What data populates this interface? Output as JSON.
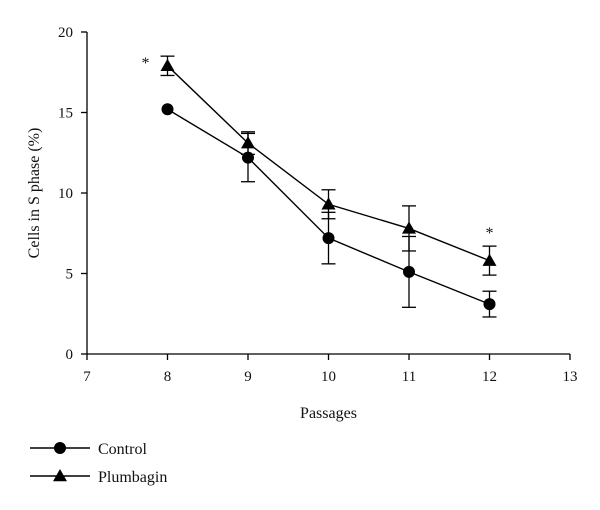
{
  "chart_data": {
    "type": "line",
    "xlabel": "Passages",
    "ylabel": "Cells in S phase (%)",
    "xlim": [
      7,
      13
    ],
    "ylim": [
      0,
      20
    ],
    "xticks": [
      "7",
      "8",
      "9",
      "10",
      "11",
      "12",
      "13"
    ],
    "yticks": [
      "0",
      "5",
      "10",
      "15",
      "20"
    ],
    "grid": false,
    "legend_position": "bottom-left",
    "x": [
      8,
      9,
      10,
      11,
      12
    ],
    "series": [
      {
        "name": "Control",
        "marker": "circle",
        "values": [
          15.2,
          12.2,
          7.2,
          5.1,
          3.1
        ],
        "errors": [
          0,
          1.5,
          1.6,
          2.2,
          0.8
        ]
      },
      {
        "name": "Plumbagin",
        "marker": "triangle",
        "values": [
          17.9,
          13.1,
          9.3,
          7.8,
          5.8
        ],
        "errors": [
          0.6,
          0.7,
          0.9,
          1.4,
          0.9
        ]
      }
    ],
    "annotations": [
      {
        "text": "*",
        "x": 8,
        "series": "Plumbagin"
      },
      {
        "text": "*",
        "x": 12,
        "series": "Plumbagin"
      }
    ],
    "color": "#000000"
  }
}
